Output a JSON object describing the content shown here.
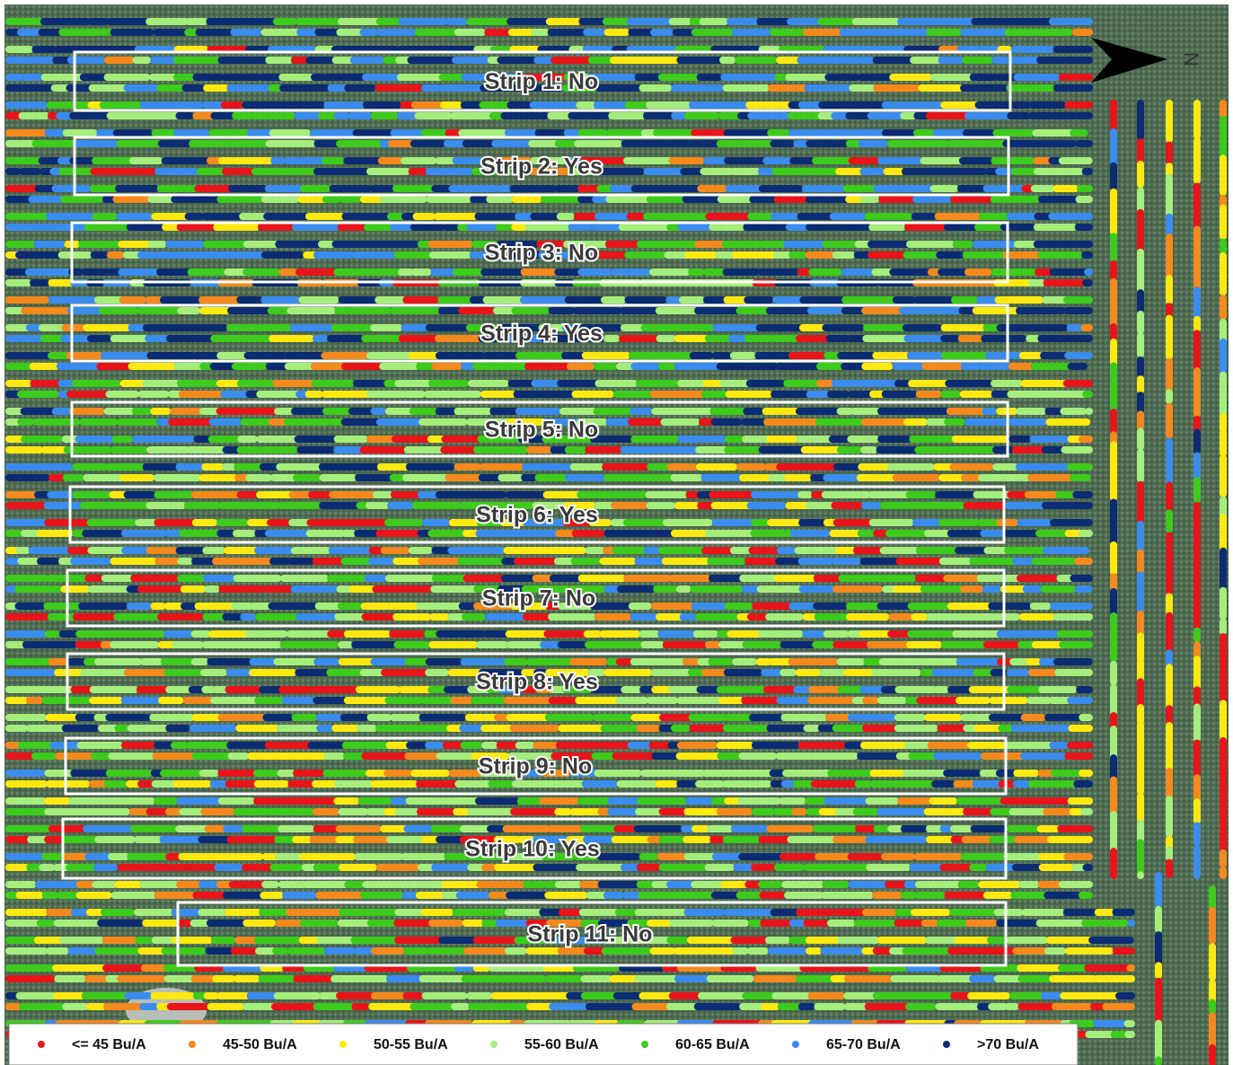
{
  "map": {
    "strips": [
      {
        "label": "Strip 1: No"
      },
      {
        "label": "Strip 2: Yes"
      },
      {
        "label": "Strip 3: No"
      },
      {
        "label": "Strip 4: Yes"
      },
      {
        "label": "Strip 5: No"
      },
      {
        "label": "Strip 6: Yes"
      },
      {
        "label": "Strip 7: No"
      },
      {
        "label": "Strip 8: Yes"
      },
      {
        "label": "Strip 9: No"
      },
      {
        "label": "Strip 10: Yes"
      },
      {
        "label": "Strip 11: No"
      }
    ],
    "legend": [
      {
        "label": "<= 45 Bu/A",
        "color": "#e8141a"
      },
      {
        "label": "45-50 Bu/A",
        "color": "#f5891c"
      },
      {
        "label": "50-55 Bu/A",
        "color": "#fde910"
      },
      {
        "label": "55-60 Bu/A",
        "color": "#a6ee7c"
      },
      {
        "label": "60-65 Bu/A",
        "color": "#3dcb1c"
      },
      {
        "label": "65-70 Bu/A",
        "color": "#3a8cee"
      },
      {
        "label": ">70 Bu/A",
        "color": "#0b2b72"
      }
    ],
    "north_label": "N"
  }
}
